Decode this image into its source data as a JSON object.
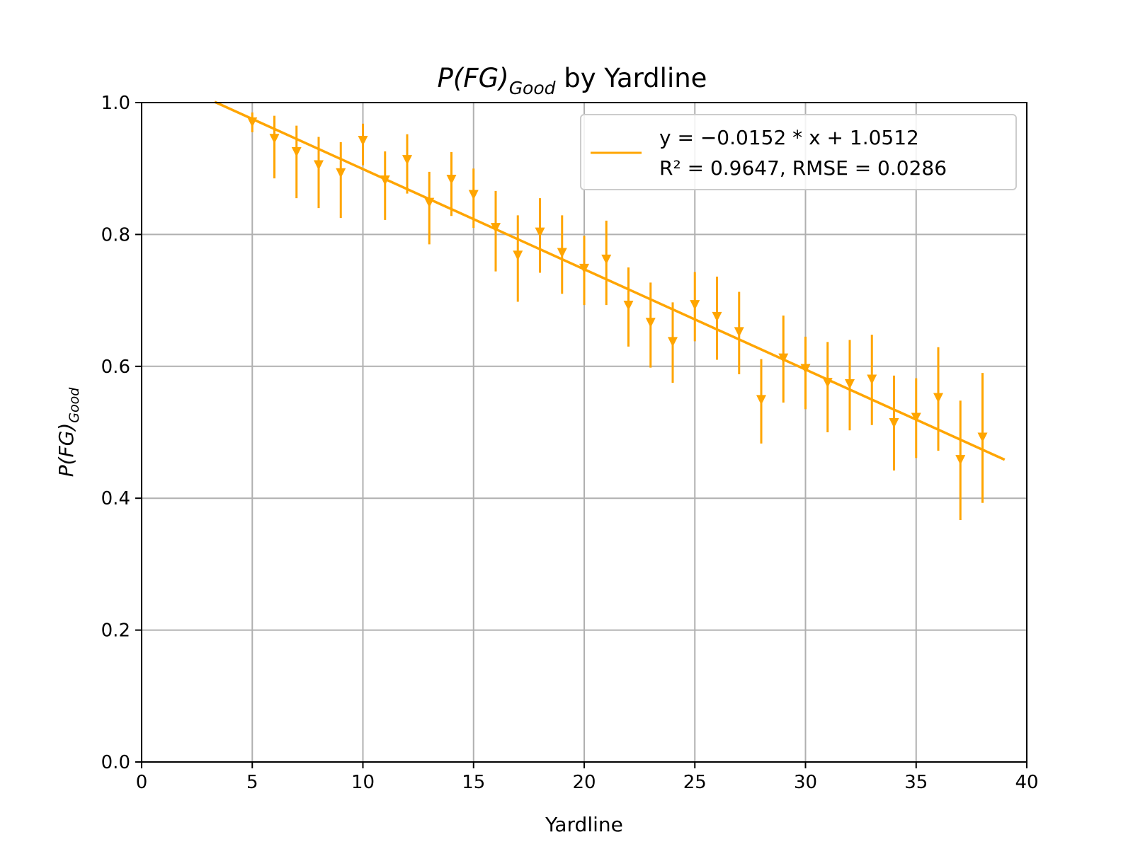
{
  "chart_data": {
    "type": "scatter",
    "title": {
      "main": "P(FG)",
      "subscript": "Good",
      "suffix": " by Yardline"
    },
    "xlabel": "Yardline",
    "ylabel": {
      "main": "P(FG)",
      "subscript": "Good"
    },
    "xlim": [
      0,
      40
    ],
    "ylim": [
      0.0,
      1.0
    ],
    "xticks": [
      "0",
      "5",
      "10",
      "15",
      "20",
      "25",
      "30",
      "35",
      "40"
    ],
    "yticks": [
      "0.0",
      "0.2",
      "0.4",
      "0.6",
      "0.8",
      "1.0"
    ],
    "grid": true,
    "color": "#FFA500",
    "legend": {
      "position": "top-right",
      "line1": "y = −0.0152 * x + 1.0512",
      "line2": "R² = 0.9647, RMSE = 0.0286"
    },
    "fit": {
      "slope": -0.0152,
      "intercept": 1.0512,
      "x_range": [
        3.3,
        39
      ]
    },
    "points": [
      {
        "x": 5,
        "y": 0.97,
        "lo": 0.955,
        "hi": 0.985
      },
      {
        "x": 6,
        "y": 0.945,
        "lo": 0.885,
        "hi": 0.98
      },
      {
        "x": 7,
        "y": 0.925,
        "lo": 0.855,
        "hi": 0.965
      },
      {
        "x": 8,
        "y": 0.905,
        "lo": 0.84,
        "hi": 0.948
      },
      {
        "x": 9,
        "y": 0.893,
        "lo": 0.825,
        "hi": 0.94
      },
      {
        "x": 10,
        "y": 0.942,
        "lo": 0.905,
        "hi": 0.968
      },
      {
        "x": 11,
        "y": 0.882,
        "lo": 0.822,
        "hi": 0.926
      },
      {
        "x": 12,
        "y": 0.913,
        "lo": 0.862,
        "hi": 0.952
      },
      {
        "x": 13,
        "y": 0.848,
        "lo": 0.785,
        "hi": 0.895
      },
      {
        "x": 14,
        "y": 0.883,
        "lo": 0.828,
        "hi": 0.925
      },
      {
        "x": 15,
        "y": 0.86,
        "lo": 0.81,
        "hi": 0.9
      },
      {
        "x": 16,
        "y": 0.81,
        "lo": 0.744,
        "hi": 0.866
      },
      {
        "x": 17,
        "y": 0.768,
        "lo": 0.698,
        "hi": 0.829
      },
      {
        "x": 18,
        "y": 0.803,
        "lo": 0.742,
        "hi": 0.855
      },
      {
        "x": 19,
        "y": 0.772,
        "lo": 0.71,
        "hi": 0.829
      },
      {
        "x": 20,
        "y": 0.748,
        "lo": 0.693,
        "hi": 0.798
      },
      {
        "x": 21,
        "y": 0.762,
        "lo": 0.693,
        "hi": 0.821
      },
      {
        "x": 22,
        "y": 0.692,
        "lo": 0.63,
        "hi": 0.75
      },
      {
        "x": 23,
        "y": 0.666,
        "lo": 0.598,
        "hi": 0.727
      },
      {
        "x": 24,
        "y": 0.637,
        "lo": 0.575,
        "hi": 0.697
      },
      {
        "x": 25,
        "y": 0.693,
        "lo": 0.638,
        "hi": 0.743
      },
      {
        "x": 26,
        "y": 0.675,
        "lo": 0.61,
        "hi": 0.736
      },
      {
        "x": 27,
        "y": 0.652,
        "lo": 0.588,
        "hi": 0.713
      },
      {
        "x": 28,
        "y": 0.549,
        "lo": 0.483,
        "hi": 0.611
      },
      {
        "x": 29,
        "y": 0.612,
        "lo": 0.545,
        "hi": 0.677
      },
      {
        "x": 30,
        "y": 0.596,
        "lo": 0.535,
        "hi": 0.645
      },
      {
        "x": 31,
        "y": 0.575,
        "lo": 0.5,
        "hi": 0.637
      },
      {
        "x": 32,
        "y": 0.573,
        "lo": 0.503,
        "hi": 0.64
      },
      {
        "x": 33,
        "y": 0.58,
        "lo": 0.511,
        "hi": 0.648
      },
      {
        "x": 34,
        "y": 0.514,
        "lo": 0.442,
        "hi": 0.586
      },
      {
        "x": 35,
        "y": 0.522,
        "lo": 0.461,
        "hi": 0.582
      },
      {
        "x": 36,
        "y": 0.552,
        "lo": 0.472,
        "hi": 0.629
      },
      {
        "x": 37,
        "y": 0.458,
        "lo": 0.367,
        "hi": 0.548
      },
      {
        "x": 38,
        "y": 0.492,
        "lo": 0.393,
        "hi": 0.59
      }
    ]
  }
}
